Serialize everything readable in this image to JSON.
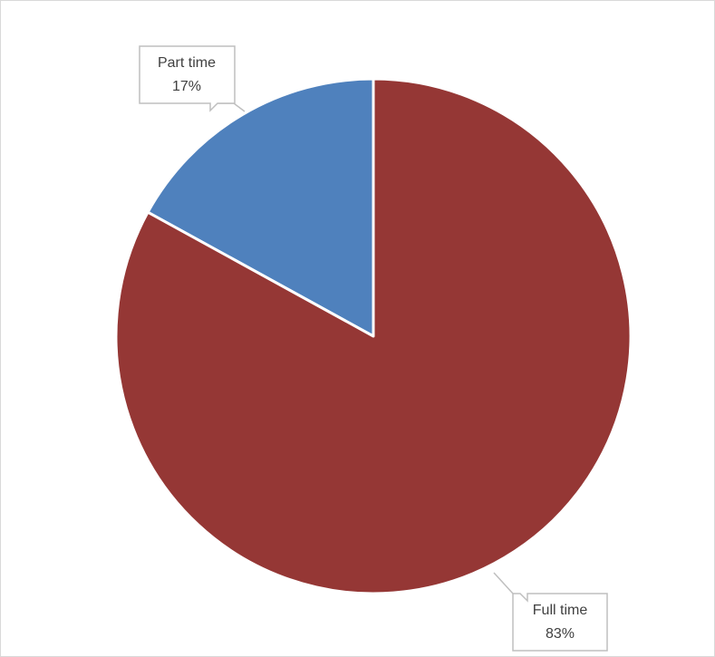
{
  "chart_data": {
    "type": "pie",
    "title": "",
    "slices": [
      {
        "label": "Part time",
        "value": 17,
        "percent_label": "17%",
        "color": "#4f81bd"
      },
      {
        "label": "Full time",
        "value": 83,
        "percent_label": "83%",
        "color": "#953735"
      }
    ],
    "start": "12 o'clock",
    "direction": "counter-clockwise",
    "legend": "none",
    "data_labels": "callouts with category name and percentage"
  }
}
